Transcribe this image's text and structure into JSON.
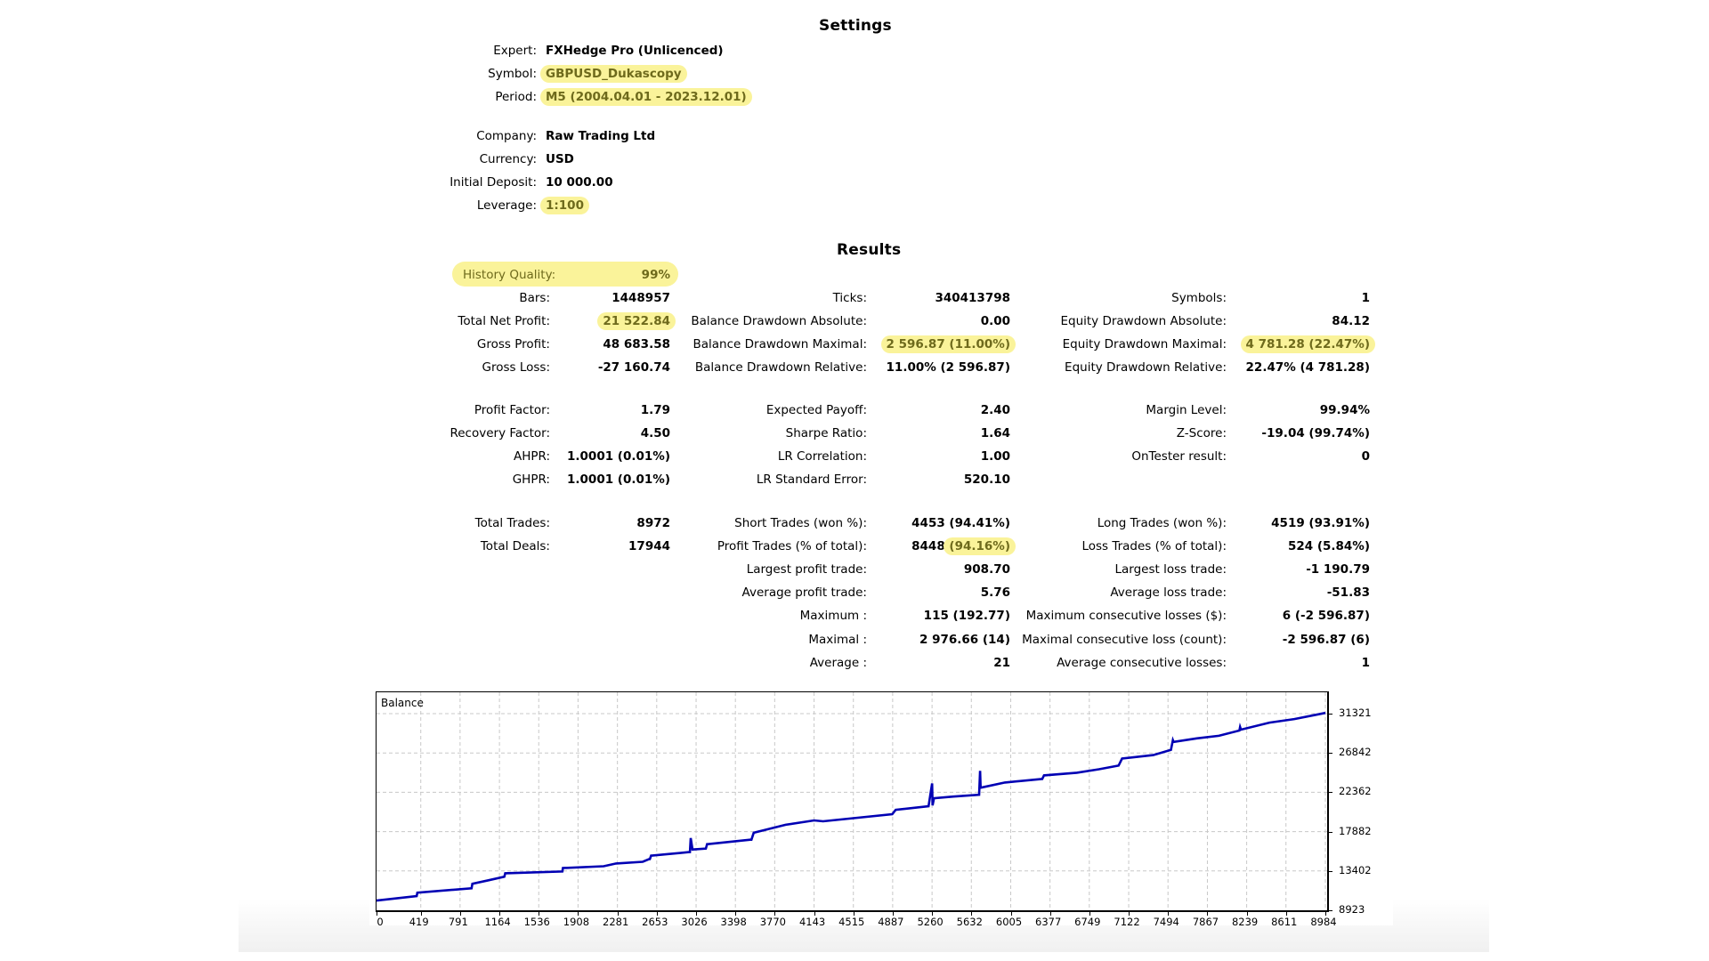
{
  "settings": {
    "title": "Settings",
    "rows": [
      {
        "label": "Expert:",
        "value": "FXHedge Pro (Unlicenced)",
        "highlight": false
      },
      {
        "label": "Symbol:",
        "value": "GBPUSD_Dukascopy",
        "highlight": true
      },
      {
        "label": "Period:",
        "value": "M5 (2004.04.01 - 2023.12.01)",
        "highlight": true
      },
      {
        "label": "Company:",
        "value": "Raw Trading Ltd",
        "highlight": false
      },
      {
        "label": "Currency:",
        "value": "USD",
        "highlight": false
      },
      {
        "label": "Initial Deposit:",
        "value": "10 000.00",
        "highlight": false
      },
      {
        "label": "Leverage:",
        "value": "1:100",
        "highlight": true
      }
    ]
  },
  "results": {
    "title": "Results",
    "history_quality": {
      "label": "History Quality:",
      "value": "99%"
    },
    "col1": [
      {
        "label": "Bars:",
        "value": "1448957"
      },
      {
        "label": "Total Net Profit:",
        "value": "21 522.84",
        "highlight": true
      },
      {
        "label": "Gross Profit:",
        "value": "48 683.58"
      },
      {
        "label": "Gross Loss:",
        "value": "-27 160.74"
      },
      {
        "label": "Profit Factor:",
        "value": "1.79"
      },
      {
        "label": "Recovery Factor:",
        "value": "4.50"
      },
      {
        "label": "AHPR:",
        "value": "1.0001 (0.01%)"
      },
      {
        "label": "GHPR:",
        "value": "1.0001 (0.01%)"
      },
      {
        "label": "Total Trades:",
        "value": "8972"
      },
      {
        "label": "Total Deals:",
        "value": "17944"
      }
    ],
    "col2": [
      {
        "label": "Ticks:",
        "value": "340413798"
      },
      {
        "label": "Balance Drawdown Absolute:",
        "value": "0.00"
      },
      {
        "label": "Balance Drawdown Maximal:",
        "value": "2 596.87 (11.00%)",
        "highlight": true
      },
      {
        "label": "Balance Drawdown Relative:",
        "value": "11.00% (2 596.87)"
      },
      {
        "label": "Expected Payoff:",
        "value": "2.40"
      },
      {
        "label": "Sharpe Ratio:",
        "value": "1.64"
      },
      {
        "label": "LR Correlation:",
        "value": "1.00"
      },
      {
        "label": "LR Standard Error:",
        "value": "520.10"
      },
      {
        "label": "Short Trades (won %):",
        "value": "4453 (94.41%)"
      },
      {
        "label": "Profit Trades (% of total):",
        "value": "8448",
        "value_highlight": "(94.16%)"
      },
      {
        "label": "Largest profit trade:",
        "value": "908.70"
      },
      {
        "label": "Average profit trade:",
        "value": "5.76"
      },
      {
        "label": "Maximum :",
        "value": "115 (192.77)"
      },
      {
        "label": "Maximal :",
        "value": "2 976.66 (14)"
      },
      {
        "label": "Average :",
        "value": "21"
      }
    ],
    "col3": [
      {
        "label": "Symbols:",
        "value": "1"
      },
      {
        "label": "Equity Drawdown Absolute:",
        "value": "84.12"
      },
      {
        "label": "Equity Drawdown Maximal:",
        "value": "4 781.28 (22.47%)",
        "highlight": true
      },
      {
        "label": "Equity Drawdown Relative:",
        "value": "22.47% (4 781.28)"
      },
      {
        "label": "Margin Level:",
        "value": "99.94%"
      },
      {
        "label": "Z-Score:",
        "value": "-19.04 (99.74%)"
      },
      {
        "label": "OnTester result:",
        "value": "0"
      },
      {
        "label": "Long Trades (won %):",
        "value": "4519 (93.91%)"
      },
      {
        "label": "Loss Trades (% of total):",
        "value": "524 (5.84%)"
      },
      {
        "label": "Largest loss trade:",
        "value": "-1 190.79"
      },
      {
        "label": "Average loss trade:",
        "value": "-51.83"
      },
      {
        "label": "Maximum consecutive losses ($):",
        "value": "6 (-2 596.87)"
      },
      {
        "label": "Maximal consecutive loss (count):",
        "value": "-2 596.87 (6)"
      },
      {
        "label": "Average consecutive losses:",
        "value": "1"
      }
    ]
  },
  "colors": {
    "highlight": "#faf39a",
    "highlight_text": "#6e6a1c",
    "balance_line": "#0000b4",
    "grid": "#c8c8c8"
  },
  "chart_data": {
    "type": "line",
    "title": "Balance",
    "xlabel": "",
    "ylabel": "",
    "x_ticks": [
      "0",
      "419",
      "791",
      "1164",
      "1536",
      "1908",
      "2281",
      "2653",
      "3026",
      "3398",
      "3770",
      "4143",
      "4515",
      "4887",
      "5260",
      "5632",
      "6005",
      "6377",
      "6749",
      "7122",
      "7494",
      "7867",
      "8239",
      "8611",
      "8984"
    ],
    "y_ticks": [
      "31321",
      "26842",
      "22362",
      "17882",
      "13402",
      "8923"
    ],
    "xlim": [
      0,
      8984
    ],
    "ylim": [
      8923,
      31321
    ],
    "grid": true,
    "series": [
      {
        "name": "Balance",
        "x": [
          0,
          380,
          387,
          900,
          908,
          1059,
          1210,
          1219,
          1760,
          1765,
          2151,
          2269,
          2521,
          2580,
          2588,
          2600,
          2605,
          2960,
          2967,
          2975,
          2992,
          3118,
          3130,
          3135,
          3538,
          3550,
          3572,
          3706,
          3874,
          4143,
          4228,
          4883,
          4916,
          5227,
          5261,
          5265,
          5278,
          5463,
          5706,
          5715,
          5720,
          5757,
          5950,
          6300,
          6303,
          6320,
          6631,
          6841,
          7026,
          7059,
          7354,
          7522,
          7540,
          7547,
          7766,
          7976,
          8170,
          8177,
          8185,
          8455,
          8690,
          8900,
          8984
        ],
        "values": [
          10030,
          10530,
          10930,
          11430,
          11940,
          12340,
          12740,
          13140,
          13340,
          13740,
          13940,
          14250,
          14450,
          14750,
          14750,
          15150,
          15150,
          15550,
          15550,
          17150,
          15850,
          15950,
          16450,
          16450,
          16960,
          16960,
          17760,
          18160,
          18660,
          19160,
          19060,
          19870,
          20370,
          20770,
          23380,
          20870,
          21680,
          21880,
          22080,
          24800,
          22880,
          22980,
          23480,
          23880,
          23880,
          24290,
          24590,
          24990,
          25400,
          26200,
          26600,
          27200,
          28300,
          28100,
          28500,
          28800,
          29400,
          29800,
          29500,
          30300,
          30700,
          31200,
          31400
        ]
      }
    ]
  }
}
